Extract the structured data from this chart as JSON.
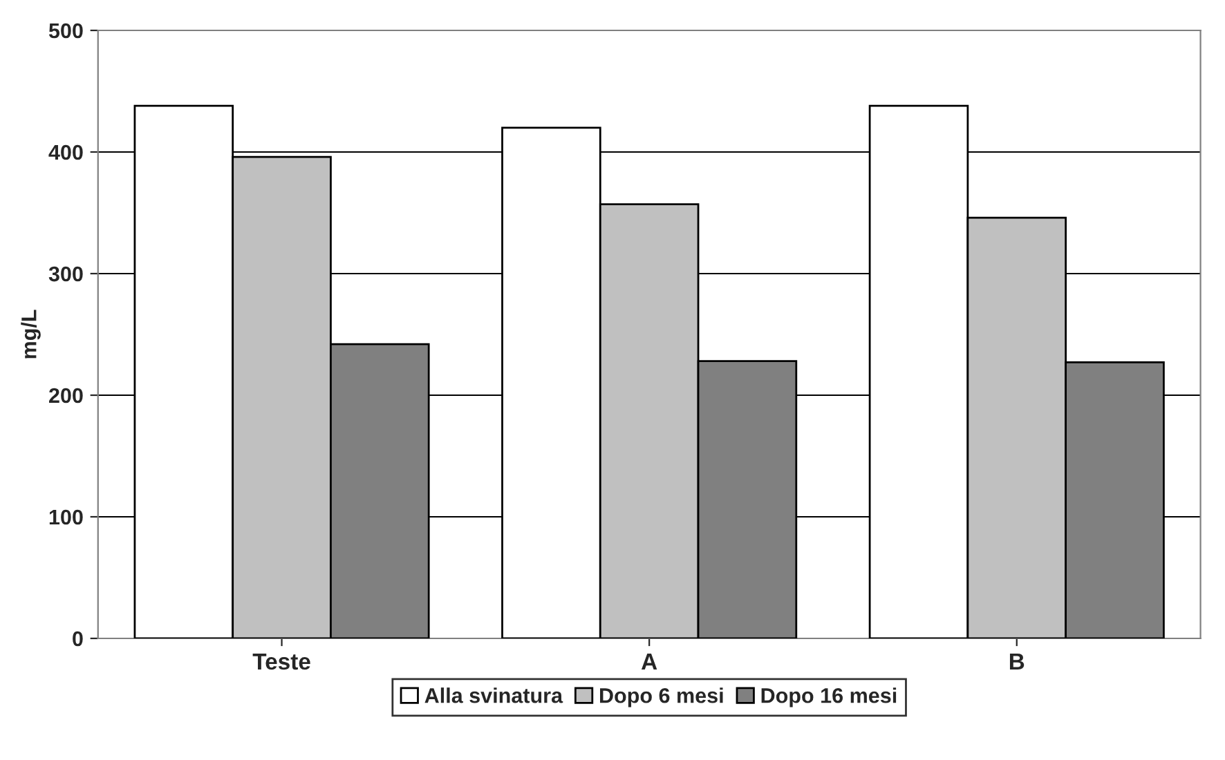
{
  "chart_data": {
    "type": "bar",
    "ylabel": "mg/L",
    "categories": [
      "Teste",
      "A",
      "B"
    ],
    "series": [
      {
        "name": "Alla svinatura",
        "color": "#ffffff",
        "values": [
          438,
          420,
          438
        ]
      },
      {
        "name": "Dopo 6 mesi",
        "color": "#c0c0c0",
        "values": [
          396,
          357,
          346
        ]
      },
      {
        "name": "Dopo 16 mesi",
        "color": "#808080",
        "values": [
          242,
          228,
          227
        ]
      }
    ],
    "ylim": [
      0,
      500
    ],
    "yticks": [
      0,
      100,
      200,
      300,
      400,
      500
    ],
    "grid": "y",
    "legend": "bottom"
  }
}
